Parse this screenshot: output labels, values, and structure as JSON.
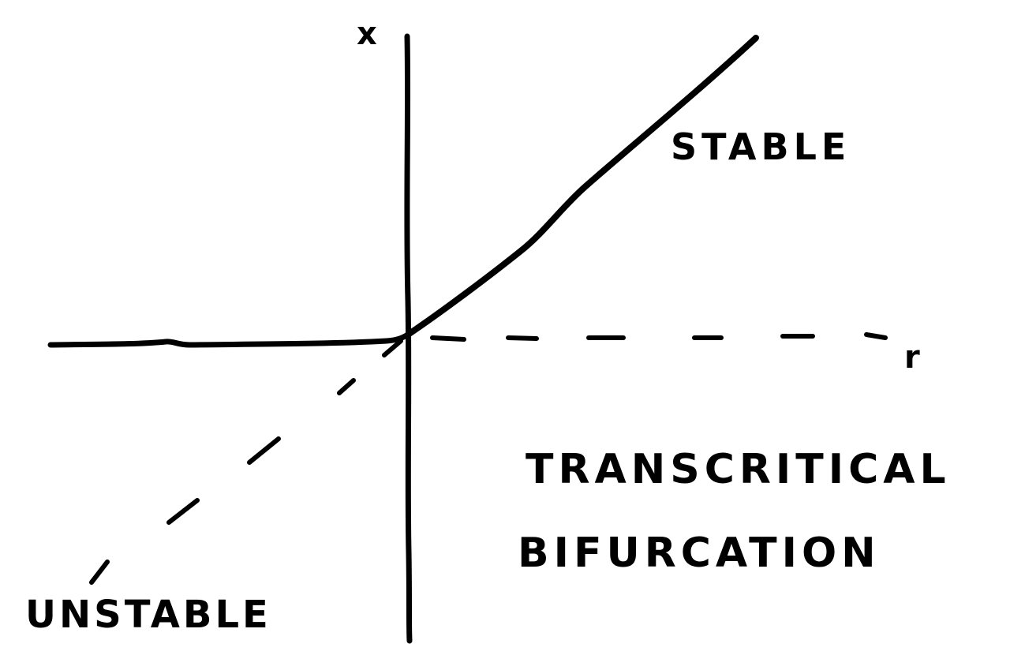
{
  "diagram": {
    "axes": {
      "vertical_label": "x",
      "horizontal_label": "r"
    },
    "labels": {
      "stable": "STABLE",
      "unstable": "UNSTABLE"
    },
    "title": {
      "line1": "TRANSCRITICAL",
      "line2": "BIFURCATION"
    },
    "branches": [
      {
        "name": "x = 0",
        "stability": "stable",
        "r_range": "r < 0"
      },
      {
        "name": "x = 0",
        "stability": "unstable",
        "r_range": "r > 0"
      },
      {
        "name": "x = r",
        "stability": "stable",
        "r_range": "r > 0"
      },
      {
        "name": "x = r",
        "stability": "unstable",
        "r_range": "r < 0"
      }
    ],
    "colors": {
      "ink": "#000000",
      "background": "#ffffff"
    }
  }
}
